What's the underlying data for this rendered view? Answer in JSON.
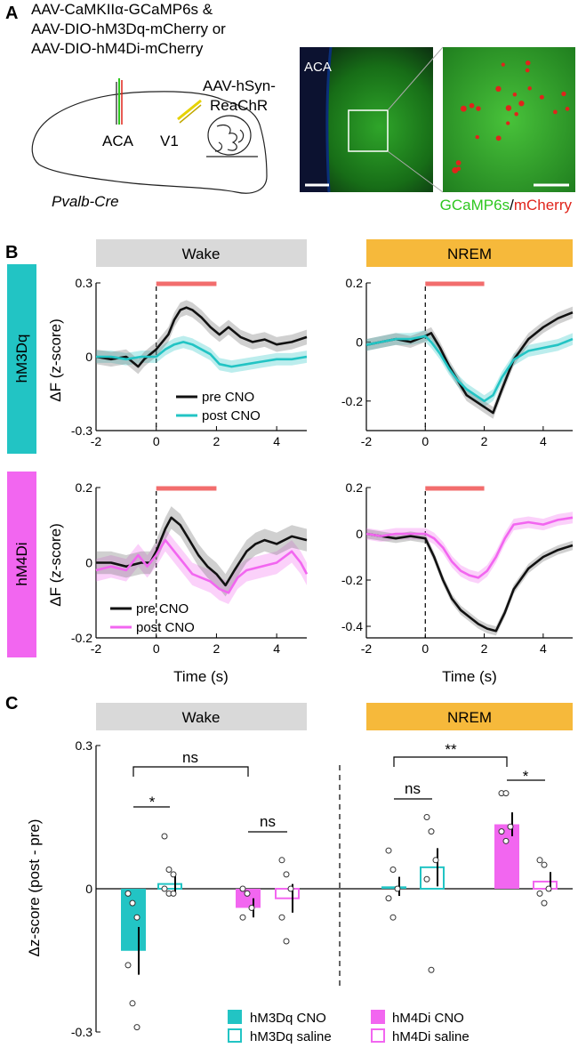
{
  "panels": {
    "a": "A",
    "b": "B",
    "c": "C"
  },
  "panel_a": {
    "injection_lines": [
      "AAV-CaMKIIα-GCaMP6s &",
      "AAV-DIO-hM3Dq-mCherry or",
      "AAV-DIO-hM4Di-mCherry"
    ],
    "v1_injection_lines": [
      "AAV-hSyn-",
      "ReaChR"
    ],
    "region_aca": "ACA",
    "region_v1": "V1",
    "mouse_line": "Pvalb-Cre",
    "image_region_label": "ACA",
    "stain_green": "GCaMP6s",
    "stain_sep": "/",
    "stain_red": "mCherry",
    "colors": {
      "green": "#2ec71f",
      "red": "#e0241b"
    }
  },
  "panel_b": {
    "state_wake": "Wake",
    "state_nrem": "NREM",
    "row_hm3dq": "hM3Dq",
    "row_hm4di": "hM4Di",
    "ylabel": "ΔF (z-score)",
    "xlabel": "Time (s)",
    "legend_pre": "pre CNO",
    "legend_post": "post CNO",
    "colors": {
      "wake_bar": "#d9d9d9",
      "nrem_bar": "#f6b93b",
      "hm3dq": "#22c4c4",
      "hm4di": "#f266f0",
      "pre": "#111111",
      "stim": "#f26d6d"
    }
  },
  "panel_c": {
    "state_wake": "Wake",
    "state_nrem": "NREM",
    "ylabel": "Δz-score (post - pre)",
    "sig": {
      "wake_between": "ns",
      "wake_hm3dq": "*",
      "wake_hm4di": "ns",
      "nrem_between": "**",
      "nrem_hm3dq": "ns",
      "nrem_hm4di": "*"
    },
    "legend": {
      "hm3dq_cno": "hM3Dq CNO",
      "hm3dq_saline": "hM3Dq saline",
      "hm4di_cno": "hM4Di CNO",
      "hm4di_saline": "hM4Di saline"
    }
  },
  "chart_data": [
    {
      "type": "line",
      "panel": "B",
      "state": "Wake",
      "group": "hM3Dq",
      "xlim": [
        -2,
        5
      ],
      "ylim": [
        -0.3,
        0.3
      ],
      "x_ticks": [
        -2,
        0,
        2,
        4
      ],
      "y_ticks": [
        "0.3",
        "0",
        "-0.3"
      ],
      "stimulus": [
        0,
        2
      ],
      "series": [
        {
          "name": "pre CNO",
          "color": "#111111",
          "x": [
            -2,
            -1.5,
            -1,
            -0.8,
            -0.6,
            -0.4,
            -0.2,
            0,
            0.2,
            0.4,
            0.6,
            0.8,
            1.0,
            1.2,
            1.5,
            1.8,
            2.1,
            2.4,
            2.8,
            3.2,
            3.6,
            4.0,
            4.5,
            5.0
          ],
          "y": [
            0.0,
            -0.01,
            0.0,
            -0.02,
            -0.04,
            -0.01,
            0.01,
            0.03,
            0.06,
            0.09,
            0.15,
            0.19,
            0.2,
            0.19,
            0.16,
            0.12,
            0.09,
            0.12,
            0.08,
            0.06,
            0.07,
            0.05,
            0.06,
            0.08
          ],
          "band": 0.03
        },
        {
          "name": "post CNO",
          "color": "#22c4c4",
          "x": [
            -2,
            -1.5,
            -1,
            -0.5,
            0,
            0.3,
            0.6,
            0.9,
            1.2,
            1.5,
            1.8,
            2.1,
            2.5,
            3.0,
            3.5,
            4.0,
            4.5,
            5.0
          ],
          "y": [
            0.0,
            0.0,
            -0.01,
            0.0,
            0.0,
            0.03,
            0.05,
            0.06,
            0.05,
            0.03,
            0.01,
            -0.03,
            -0.04,
            -0.03,
            -0.02,
            -0.01,
            -0.01,
            0.0
          ],
          "band": 0.025
        }
      ]
    },
    {
      "type": "line",
      "panel": "B",
      "state": "NREM",
      "group": "hM3Dq",
      "xlim": [
        -2,
        5
      ],
      "ylim": [
        -0.3,
        0.2
      ],
      "x_ticks": [
        -2,
        0,
        2,
        4
      ],
      "y_ticks": [
        "0.2",
        "0",
        "-0.2"
      ],
      "stimulus": [
        0,
        2
      ],
      "series": [
        {
          "name": "pre CNO",
          "color": "#111111",
          "x": [
            -2,
            -1.5,
            -1,
            -0.5,
            0,
            0.2,
            0.5,
            0.8,
            1.1,
            1.4,
            1.7,
            2.0,
            2.3,
            2.6,
            3.0,
            3.5,
            4.0,
            4.5,
            5.0
          ],
          "y": [
            -0.01,
            0.0,
            0.01,
            0.0,
            0.02,
            0.03,
            -0.02,
            -0.08,
            -0.13,
            -0.18,
            -0.2,
            -0.22,
            -0.24,
            -0.16,
            -0.06,
            0.01,
            0.05,
            0.08,
            0.1
          ],
          "band": 0.02
        },
        {
          "name": "post CNO",
          "color": "#22c4c4",
          "x": [
            -2,
            -1.5,
            -1,
            -0.5,
            0,
            0.2,
            0.5,
            0.8,
            1.1,
            1.4,
            1.7,
            2.0,
            2.3,
            2.6,
            3.0,
            3.5,
            4.0,
            4.5,
            5.0
          ],
          "y": [
            -0.01,
            0.0,
            0.01,
            0.01,
            0.02,
            0.0,
            -0.04,
            -0.09,
            -0.13,
            -0.16,
            -0.18,
            -0.2,
            -0.18,
            -0.12,
            -0.06,
            -0.03,
            -0.02,
            -0.01,
            0.01
          ],
          "band": 0.02
        }
      ]
    },
    {
      "type": "line",
      "panel": "B",
      "state": "Wake",
      "group": "hM4Di",
      "xlim": [
        -2,
        5
      ],
      "ylim": [
        -0.2,
        0.2
      ],
      "x_ticks": [
        -2,
        0,
        2,
        4
      ],
      "y_ticks": [
        "0.2",
        "0",
        "-0.2"
      ],
      "stimulus": [
        0,
        2
      ],
      "series": [
        {
          "name": "pre CNO",
          "color": "#111111",
          "x": [
            -2,
            -1.5,
            -1,
            -0.5,
            -0.2,
            0,
            0.3,
            0.5,
            0.8,
            1.1,
            1.4,
            1.7,
            2.0,
            2.3,
            2.6,
            3.0,
            3.3,
            3.6,
            4.0,
            4.5,
            5.0
          ],
          "y": [
            0.0,
            0.0,
            -0.01,
            0.0,
            0.0,
            0.03,
            0.09,
            0.12,
            0.1,
            0.06,
            0.02,
            -0.01,
            -0.03,
            -0.06,
            -0.02,
            0.03,
            0.05,
            0.06,
            0.05,
            0.07,
            0.06
          ],
          "band": 0.03
        },
        {
          "name": "post CNO",
          "color": "#f266f0",
          "x": [
            -2,
            -1.5,
            -1,
            -0.6,
            -0.3,
            0,
            0.3,
            0.6,
            0.9,
            1.2,
            1.5,
            1.8,
            2.1,
            2.4,
            2.7,
            3.0,
            3.5,
            4.0,
            4.5,
            4.8,
            5.0
          ],
          "y": [
            -0.02,
            -0.01,
            -0.02,
            0.02,
            -0.01,
            0.02,
            0.06,
            0.03,
            0.0,
            -0.03,
            -0.04,
            -0.05,
            -0.07,
            -0.08,
            -0.04,
            -0.02,
            -0.01,
            0.0,
            0.03,
            0.0,
            -0.03
          ],
          "band": 0.03
        }
      ]
    },
    {
      "type": "line",
      "panel": "B",
      "state": "NREM",
      "group": "hM4Di",
      "xlim": [
        -2,
        5
      ],
      "ylim": [
        -0.45,
        0.2
      ],
      "x_ticks": [
        -2,
        0,
        2,
        4
      ],
      "y_ticks": [
        "0.2",
        "0",
        "-0.2",
        "-0.4"
      ],
      "stimulus": [
        0,
        2
      ],
      "series": [
        {
          "name": "pre CNO",
          "color": "#111111",
          "x": [
            -2,
            -1.5,
            -1,
            -0.5,
            0,
            0.3,
            0.6,
            0.9,
            1.2,
            1.5,
            1.8,
            2.1,
            2.4,
            2.7,
            3.0,
            3.5,
            4.0,
            4.5,
            5.0
          ],
          "y": [
            0.0,
            -0.01,
            -0.02,
            -0.01,
            -0.02,
            -0.1,
            -0.2,
            -0.28,
            -0.33,
            -0.36,
            -0.39,
            -0.41,
            -0.42,
            -0.34,
            -0.24,
            -0.15,
            -0.1,
            -0.07,
            -0.05
          ],
          "band": 0.02
        },
        {
          "name": "post CNO",
          "color": "#f266f0",
          "x": [
            -2,
            -1.5,
            -1,
            -0.5,
            0,
            0.3,
            0.6,
            0.9,
            1.2,
            1.5,
            1.8,
            2.1,
            2.4,
            2.7,
            3.0,
            3.5,
            4.0,
            4.5,
            5.0
          ],
          "y": [
            0.0,
            -0.01,
            0.0,
            0.0,
            0.0,
            -0.02,
            -0.06,
            -0.12,
            -0.16,
            -0.18,
            -0.19,
            -0.16,
            -0.1,
            -0.02,
            0.04,
            0.05,
            0.04,
            0.06,
            0.07
          ],
          "band": 0.025
        }
      ]
    },
    {
      "type": "bar",
      "panel": "C",
      "ylim": [
        -0.3,
        0.3
      ],
      "y_ticks": [
        "0.3",
        "0",
        "-0.3"
      ],
      "categories": [
        "Wake hM3Dq CNO",
        "Wake hM3Dq saline",
        "Wake hM4Di CNO",
        "Wake hM4Di saline",
        "NREM hM3Dq CNO",
        "NREM hM3Dq saline",
        "NREM hM4Di CNO",
        "NREM hM4Di saline"
      ],
      "values": [
        -0.13,
        0.01,
        -0.04,
        -0.02,
        0.005,
        0.045,
        0.135,
        0.015
      ],
      "errors": [
        0.05,
        0.02,
        0.02,
        0.03,
        0.02,
        0.04,
        0.025,
        0.02
      ],
      "filled": [
        true,
        false,
        true,
        false,
        true,
        false,
        true,
        false
      ],
      "colors": [
        "#22c4c4",
        "#22c4c4",
        "#f266f0",
        "#f266f0",
        "#22c4c4",
        "#22c4c4",
        "#f266f0",
        "#f266f0"
      ],
      "points": [
        [
          -0.01,
          -0.03,
          -0.06,
          -0.16,
          -0.24,
          -0.29
        ],
        [
          0.11,
          0.04,
          0.03,
          0.0,
          -0.01,
          -0.01
        ],
        [
          0.0,
          -0.01,
          -0.04,
          -0.06
        ],
        [
          0.06,
          0.03,
          0.0,
          -0.06,
          -0.11
        ],
        [
          0.08,
          0.04,
          0.0,
          -0.02,
          -0.06
        ],
        [
          0.15,
          0.12,
          0.06,
          0.02,
          -0.17
        ],
        [
          0.2,
          0.2,
          0.13,
          0.12,
          0.1
        ],
        [
          0.06,
          0.05,
          0.0,
          -0.01,
          -0.03
        ]
      ]
    }
  ]
}
